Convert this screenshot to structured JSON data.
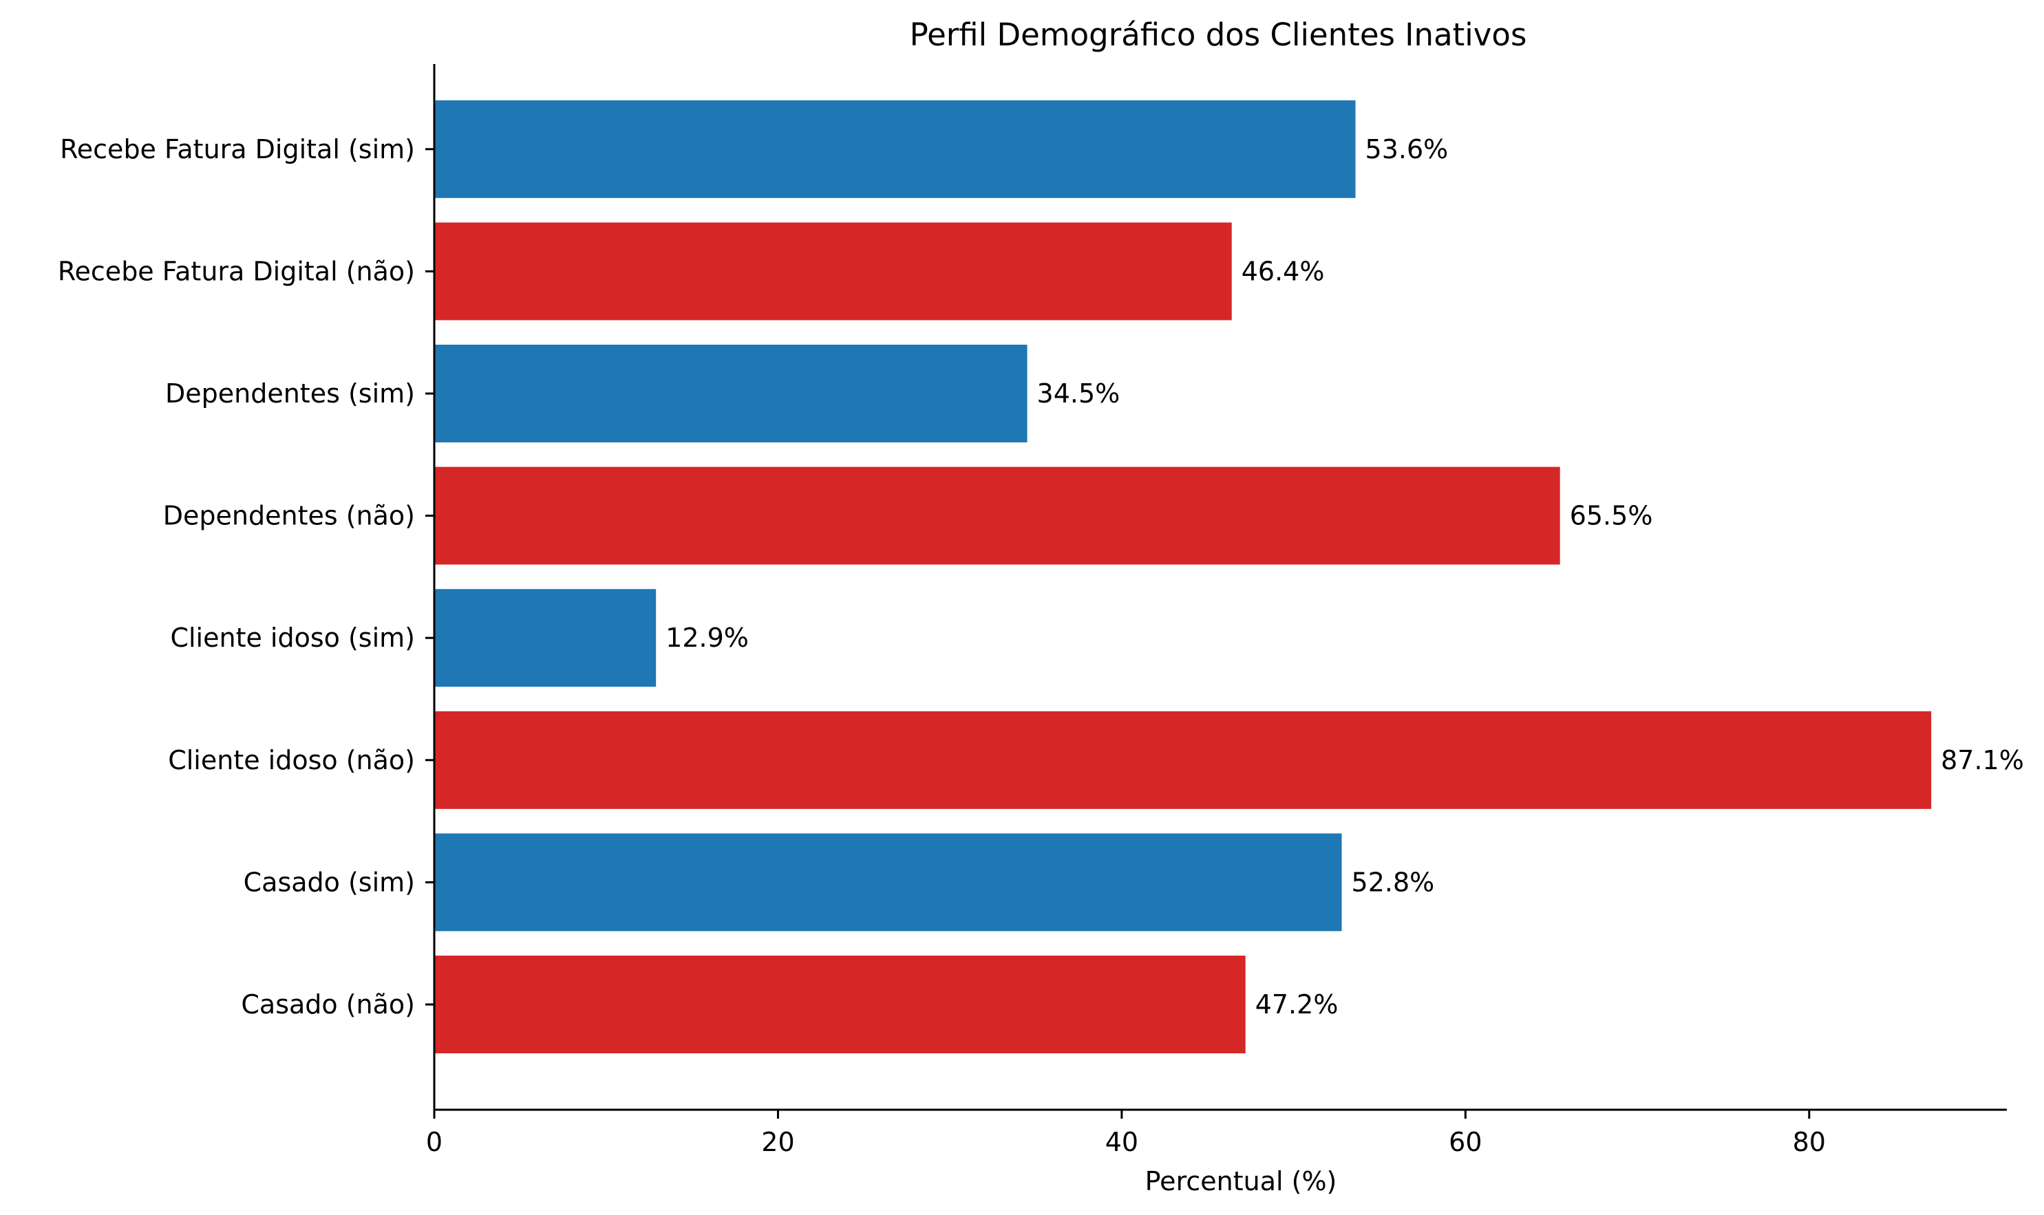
{
  "chart_data": {
    "type": "bar",
    "orientation": "horizontal",
    "title": "Perfil Demográfico dos Clientes Inativos",
    "xlabel": "Percentual (%)",
    "ylabel": "",
    "xlim": [
      0,
      91.5
    ],
    "xticks": [
      0,
      20,
      40,
      60,
      80
    ],
    "xtick_labels": [
      "0",
      "20",
      "40",
      "60",
      "80"
    ],
    "grid": false,
    "categories": [
      "Casado (não)",
      "Casado (sim)",
      "Cliente idoso (não)",
      "Cliente idoso (sim)",
      "Dependentes (não)",
      "Dependentes (sim)",
      "Recebe Fatura Digital (não)",
      "Recebe Fatura Digital (sim)"
    ],
    "values": [
      47.2,
      52.8,
      87.1,
      12.9,
      65.5,
      34.5,
      46.4,
      53.6
    ],
    "data_labels": [
      "47.2%",
      "52.8%",
      "87.1%",
      "12.9%",
      "65.5%",
      "34.5%",
      "46.4%",
      "53.6%"
    ],
    "bar_colors": [
      "#d62728",
      "#1f77b4",
      "#d62728",
      "#1f77b4",
      "#d62728",
      "#1f77b4",
      "#d62728",
      "#1f77b4"
    ]
  }
}
